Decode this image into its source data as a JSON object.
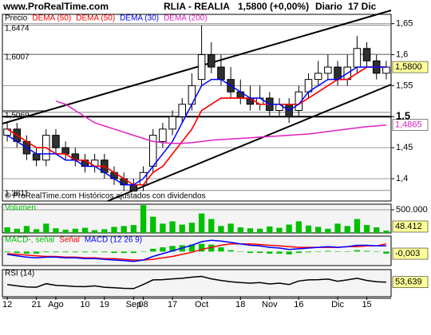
{
  "header": {
    "site": "www.ProRealTime.com",
    "instrument": "RLIA - REALIA",
    "quote": "1,5800 (+0,00%)",
    "period": "Diario",
    "date": "17 Dic"
  },
  "chart_data": [
    {
      "type": "candlestick",
      "annotation": "© ProRealTime.com Históricos ajustados con dividendos",
      "categories": [
        "12",
        null,
        null,
        "21",
        null,
        "Ago",
        null,
        null,
        "10",
        null,
        "19",
        null,
        null,
        "Sep",
        "08",
        null,
        null,
        "17",
        null,
        null,
        "Oct",
        null,
        null,
        null,
        "18",
        null,
        null,
        "Nov",
        null,
        null,
        "16",
        null,
        null,
        null,
        "Dic",
        null,
        null,
        "15",
        null,
        null
      ],
      "ylim": [
        1.364,
        1.665
      ],
      "yticks": [
        {
          "value": 1.65,
          "label": "1,65"
        },
        {
          "value": 1.6,
          "label": "1,6"
        },
        {
          "value": 1.55,
          "label": "1,55"
        },
        {
          "value": 1.5,
          "label": "1,5"
        },
        {
          "value": 1.45,
          "label": "1,45"
        },
        {
          "value": 1.4,
          "label": "1,4"
        }
      ],
      "levels": [
        {
          "value": 1.6474,
          "label": "1,6474"
        },
        {
          "value": 1.6007,
          "label": "1,6007"
        },
        {
          "value": 1.5069,
          "label": "1,5069"
        },
        {
          "value": 1.3811,
          "label": "1,3811"
        }
      ],
      "name": "Precio",
      "color": "#000000",
      "up_color": "#ffffff",
      "down_color": "#303030",
      "last_label": "1,5800",
      "open": [
        1.47,
        1.48,
        1.46,
        1.44,
        1.43,
        1.47,
        1.45,
        1.44,
        1.43,
        1.42,
        1.43,
        1.41,
        1.4,
        1.39,
        1.39,
        1.42,
        1.46,
        1.48,
        1.5,
        1.52,
        1.56,
        1.6,
        1.58,
        1.56,
        1.54,
        1.53,
        1.52,
        1.53,
        1.51,
        1.52,
        1.51,
        1.54,
        1.56,
        1.57,
        1.58,
        1.56,
        1.58,
        1.61,
        1.59,
        1.57
      ],
      "high": [
        1.49,
        1.49,
        1.47,
        1.45,
        1.48,
        1.48,
        1.46,
        1.45,
        1.44,
        1.44,
        1.44,
        1.42,
        1.41,
        1.4,
        1.42,
        1.48,
        1.49,
        1.51,
        1.53,
        1.57,
        1.647,
        1.62,
        1.6,
        1.58,
        1.56,
        1.55,
        1.55,
        1.54,
        1.53,
        1.53,
        1.55,
        1.57,
        1.59,
        1.6,
        1.59,
        1.6,
        1.63,
        1.62,
        1.6,
        1.59
      ],
      "low": [
        1.46,
        1.45,
        1.43,
        1.42,
        1.42,
        1.44,
        1.43,
        1.42,
        1.41,
        1.41,
        1.4,
        1.39,
        1.38,
        1.381,
        1.38,
        1.41,
        1.45,
        1.47,
        1.49,
        1.51,
        1.55,
        1.57,
        1.55,
        1.53,
        1.52,
        1.51,
        1.51,
        1.5,
        1.5,
        1.49,
        1.5,
        1.53,
        1.55,
        1.56,
        1.55,
        1.55,
        1.57,
        1.58,
        1.56,
        1.56
      ],
      "close": [
        1.48,
        1.46,
        1.44,
        1.43,
        1.47,
        1.45,
        1.44,
        1.43,
        1.42,
        1.43,
        1.41,
        1.4,
        1.39,
        1.38,
        1.41,
        1.47,
        1.48,
        1.5,
        1.52,
        1.55,
        1.6,
        1.58,
        1.56,
        1.54,
        1.53,
        1.52,
        1.53,
        1.51,
        1.52,
        1.5,
        1.54,
        1.56,
        1.57,
        1.58,
        1.56,
        1.58,
        1.61,
        1.59,
        1.57,
        1.58
      ],
      "series": [
        {
          "name": "DEMA (50)",
          "color": "#ff0000",
          "values": [
            1.48,
            1.47,
            1.46,
            1.45,
            1.45,
            1.44,
            1.44,
            1.43,
            1.43,
            1.42,
            1.42,
            1.41,
            1.4,
            1.39,
            1.39,
            1.41,
            1.42,
            1.44,
            1.46,
            1.48,
            1.51,
            1.52,
            1.53,
            1.53,
            1.53,
            1.53,
            1.52,
            1.52,
            1.52,
            1.52,
            1.52,
            1.53,
            1.54,
            1.55,
            1.56,
            1.56,
            1.57,
            1.58,
            1.58,
            1.58
          ]
        },
        {
          "name": "DEMA (50)",
          "color": "#ff0000",
          "values": [
            1.48,
            1.47,
            1.46,
            1.45,
            1.45,
            1.44,
            1.44,
            1.43,
            1.43,
            1.42,
            1.42,
            1.41,
            1.4,
            1.39,
            1.39,
            1.41,
            1.42,
            1.44,
            1.46,
            1.48,
            1.51,
            1.52,
            1.53,
            1.53,
            1.53,
            1.53,
            1.52,
            1.52,
            1.52,
            1.52,
            1.52,
            1.53,
            1.54,
            1.55,
            1.56,
            1.56,
            1.57,
            1.58,
            1.58,
            1.58
          ]
        },
        {
          "name": "DEMA (30)",
          "color": "#0000ff",
          "values": [
            1.47,
            1.46,
            1.45,
            1.44,
            1.44,
            1.44,
            1.43,
            1.43,
            1.42,
            1.42,
            1.41,
            1.4,
            1.39,
            1.39,
            1.4,
            1.42,
            1.44,
            1.46,
            1.49,
            1.52,
            1.55,
            1.56,
            1.56,
            1.55,
            1.54,
            1.53,
            1.53,
            1.52,
            1.52,
            1.51,
            1.52,
            1.54,
            1.55,
            1.56,
            1.56,
            1.57,
            1.58,
            1.58,
            1.58,
            1.58
          ]
        },
        {
          "name": "DEMA (200)",
          "color": "#e020c0",
          "last_label": "1,4865",
          "values": [
            null,
            null,
            null,
            null,
            null,
            1.525,
            1.52,
            1.51,
            1.5,
            1.49,
            1.485,
            1.48,
            1.475,
            1.47,
            1.465,
            1.46,
            1.458,
            1.457,
            1.457,
            1.458,
            1.46,
            1.462,
            1.463,
            1.464,
            1.465,
            1.466,
            1.467,
            1.468,
            1.469,
            1.47,
            1.471,
            1.472,
            1.474,
            1.476,
            1.478,
            1.48,
            1.482,
            1.484,
            1.485,
            1.4865
          ]
        }
      ]
    },
    {
      "type": "bar",
      "ylim": [
        0,
        620000
      ],
      "yticks": [
        {
          "value": 500000,
          "label": "500.000"
        }
      ],
      "series": [
        {
          "name": "Volumen",
          "color": "#00c000",
          "last_label": "48.412",
          "values": [
            120000,
            90000,
            150000,
            80000,
            200000,
            100000,
            70000,
            90000,
            110000,
            60000,
            80000,
            130000,
            150000,
            170000,
            600000,
            350000,
            200000,
            250000,
            180000,
            220000,
            420000,
            300000,
            150000,
            200000,
            120000,
            100000,
            90000,
            140000,
            110000,
            180000,
            250000,
            160000,
            130000,
            90000,
            200000,
            150000,
            300000,
            170000,
            120000,
            48412
          ]
        }
      ]
    },
    {
      "type": "line",
      "ylim": [
        -0.02,
        0.022
      ],
      "series": [
        {
          "name": "MACD-, señal",
          "color": "#00c000",
          "kind": "bar",
          "last_label": "-0,003",
          "values": [
            -0.001,
            -0.002,
            -0.003,
            -0.003,
            -0.001,
            -0.001,
            -0.001,
            -0.001,
            -0.001,
            -0.001,
            -0.001,
            -0.002,
            -0.002,
            -0.002,
            0,
            0.004,
            0.006,
            0.008,
            0.009,
            0.01,
            0.011,
            0.01,
            0.006,
            0.002,
            0,
            -0.002,
            -0.002,
            -0.003,
            -0.003,
            -0.004,
            -0.002,
            -0.001,
            0,
            0.001,
            0,
            0,
            0.002,
            0.001,
            0,
            -0.003
          ]
        },
        {
          "name": "Señal",
          "color": "#ff0000",
          "values": [
            -0.003,
            -0.004,
            -0.005,
            -0.006,
            -0.007,
            -0.007,
            -0.008,
            -0.008,
            -0.009,
            -0.009,
            -0.01,
            -0.01,
            -0.011,
            -0.012,
            -0.012,
            -0.011,
            -0.009,
            -0.007,
            -0.004,
            -0.001,
            0.003,
            0.006,
            0.009,
            0.011,
            0.011,
            0.011,
            0.01,
            0.009,
            0.008,
            0.007,
            0.006,
            0.006,
            0.006,
            0.006,
            0.006,
            0.007,
            0.007,
            0.008,
            0.008,
            0.011
          ]
        },
        {
          "name": "MACD (12 26 9)",
          "color": "#0000ff",
          "values": [
            -0.004,
            -0.006,
            -0.008,
            -0.009,
            -0.008,
            -0.008,
            -0.009,
            -0.009,
            -0.01,
            -0.01,
            -0.011,
            -0.012,
            -0.013,
            -0.014,
            -0.012,
            -0.007,
            -0.003,
            0.001,
            0.005,
            0.009,
            0.014,
            0.016,
            0.015,
            0.013,
            0.011,
            0.009,
            0.008,
            0.006,
            0.005,
            0.003,
            0.004,
            0.005,
            0.006,
            0.007,
            0.006,
            0.007,
            0.009,
            0.009,
            0.008,
            0.008
          ]
        }
      ]
    },
    {
      "type": "line",
      "ylim": [
        0,
        100
      ],
      "series": [
        {
          "name": "RSI (14)",
          "color": "#000000",
          "last_label": "53,639",
          "values": [
            45,
            40,
            36,
            35,
            48,
            42,
            40,
            38,
            37,
            40,
            35,
            33,
            31,
            30,
            45,
            62,
            63,
            66,
            68,
            72,
            75,
            66,
            60,
            55,
            52,
            50,
            52,
            47,
            50,
            45,
            58,
            62,
            63,
            65,
            57,
            62,
            68,
            60,
            55,
            53.639
          ]
        }
      ]
    }
  ]
}
